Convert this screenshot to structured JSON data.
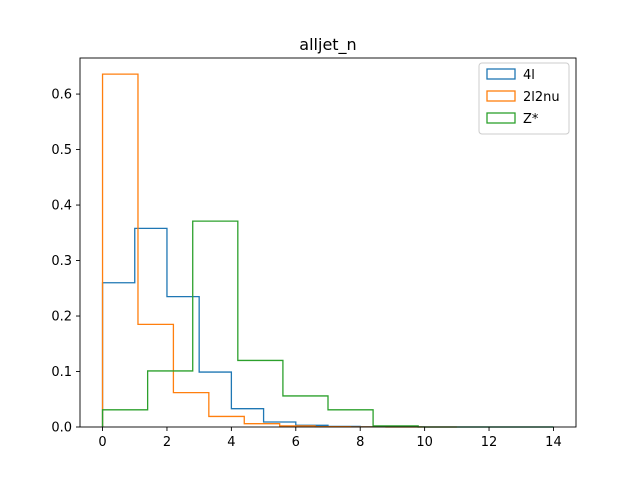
{
  "chart_data": {
    "type": "histogram",
    "title": "alljet_n",
    "xlabel": "",
    "ylabel": "",
    "xlim": [
      -0.7,
      14.7
    ],
    "ylim": [
      0,
      0.665
    ],
    "xticks": [
      0,
      2,
      4,
      6,
      8,
      10,
      12,
      14
    ],
    "yticks": [
      0.0,
      0.1,
      0.2,
      0.3,
      0.4,
      0.5,
      0.6
    ],
    "xtick_labels": [
      "0",
      "2",
      "4",
      "6",
      "8",
      "10",
      "12",
      "14"
    ],
    "ytick_labels": [
      "0.0",
      "0.1",
      "0.2",
      "0.3",
      "0.4",
      "0.5",
      "0.6"
    ],
    "grid": false,
    "legend_position": "top-right",
    "series": [
      {
        "name": "4l",
        "color": "#1f77b4",
        "bin_edges": [
          0,
          1,
          2,
          3,
          4,
          5,
          6,
          7,
          8,
          9,
          10,
          11,
          12,
          13,
          14
        ],
        "values": [
          0.26,
          0.358,
          0.235,
          0.099,
          0.033,
          0.009,
          0.003,
          0.001,
          0.0005,
          0.0002,
          0.0,
          0.0,
          0.0,
          0.0
        ]
      },
      {
        "name": "2l2nu",
        "color": "#ff7f0e",
        "bin_edges": [
          0,
          1.1,
          2.2,
          3.3,
          4.4,
          5.5,
          6.6,
          7.7,
          8.8,
          9.9,
          11.0
        ],
        "values": [
          0.636,
          0.185,
          0.062,
          0.019,
          0.006,
          0.002,
          0.0006,
          0.0002,
          0.0001,
          0.0
        ]
      },
      {
        "name": "Z*",
        "color": "#2ca02c",
        "bin_edges": [
          0,
          1.4,
          2.8,
          4.2,
          5.6,
          7.0,
          8.4,
          9.8,
          11.2,
          12.6,
          14.0
        ],
        "values": [
          0.031,
          0.101,
          0.371,
          0.12,
          0.056,
          0.031,
          0.002,
          0.0,
          0.0,
          0.0
        ]
      }
    ]
  }
}
